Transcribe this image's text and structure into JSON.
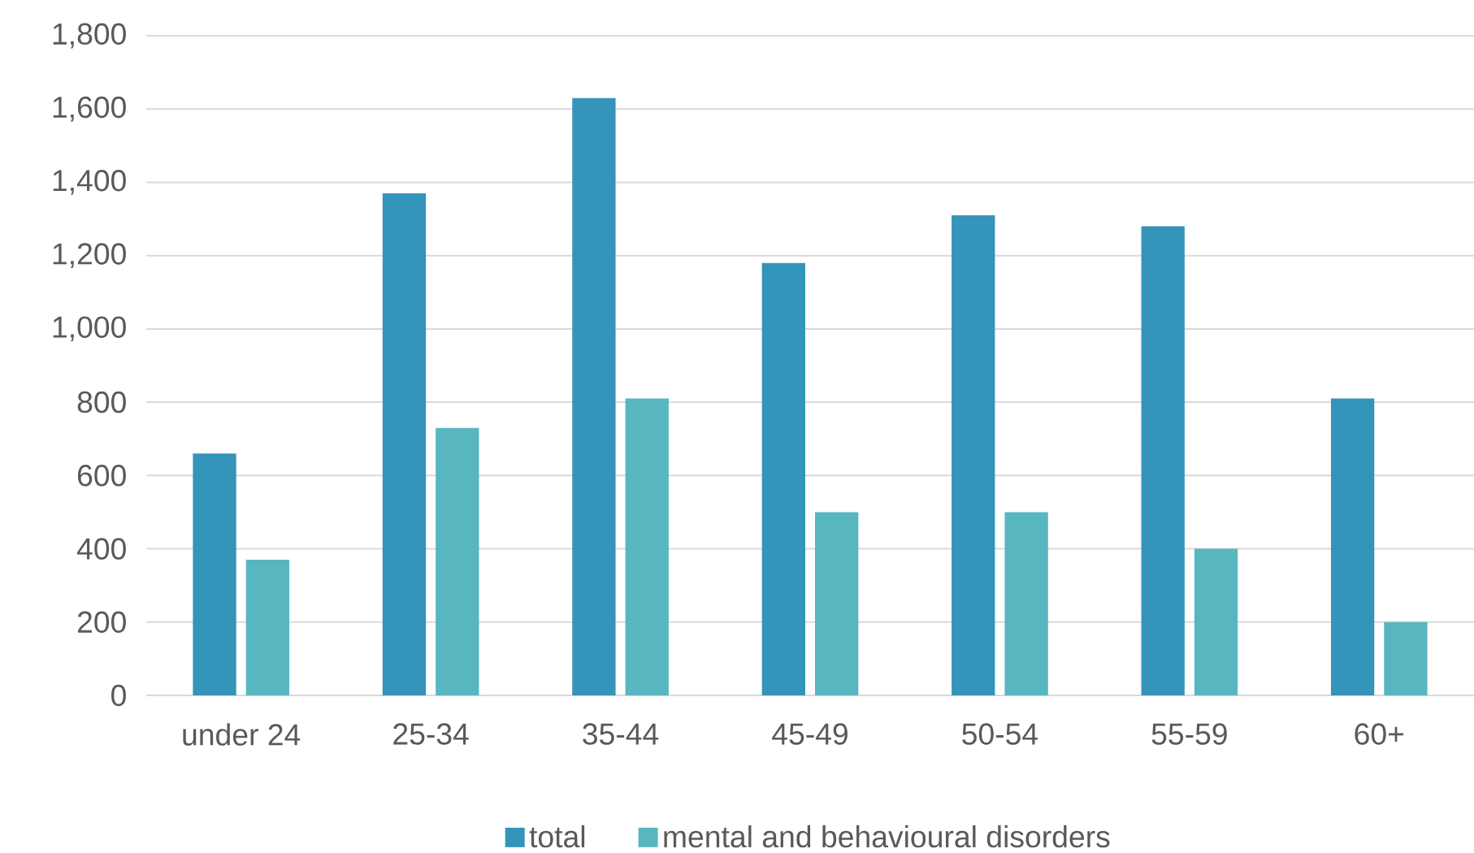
{
  "chart_data": {
    "type": "bar",
    "categories": [
      "under 24",
      "25-34",
      "35-44",
      "45-49",
      "50-54",
      "55-59",
      "60+"
    ],
    "series": [
      {
        "name": "total",
        "color": "#3494ba",
        "values": [
          660,
          1370,
          1630,
          1180,
          1310,
          1280,
          810
        ]
      },
      {
        "name": "mental and behavioural disorders",
        "color": "#58b6c0",
        "values": [
          370,
          730,
          810,
          500,
          500,
          400,
          200
        ]
      }
    ],
    "ylim": [
      0,
      1800
    ],
    "yticks": [
      0,
      200,
      400,
      600,
      800,
      {
        "value": 1000,
        "label": "1,000"
      },
      {
        "value": 1200,
        "label": "1,200"
      },
      {
        "value": 1400,
        "label": "1,400"
      },
      {
        "value": 1600,
        "label": "1,600"
      },
      {
        "value": 1800,
        "label": "1,800"
      }
    ],
    "grid": "y",
    "legend": "bottom"
  }
}
